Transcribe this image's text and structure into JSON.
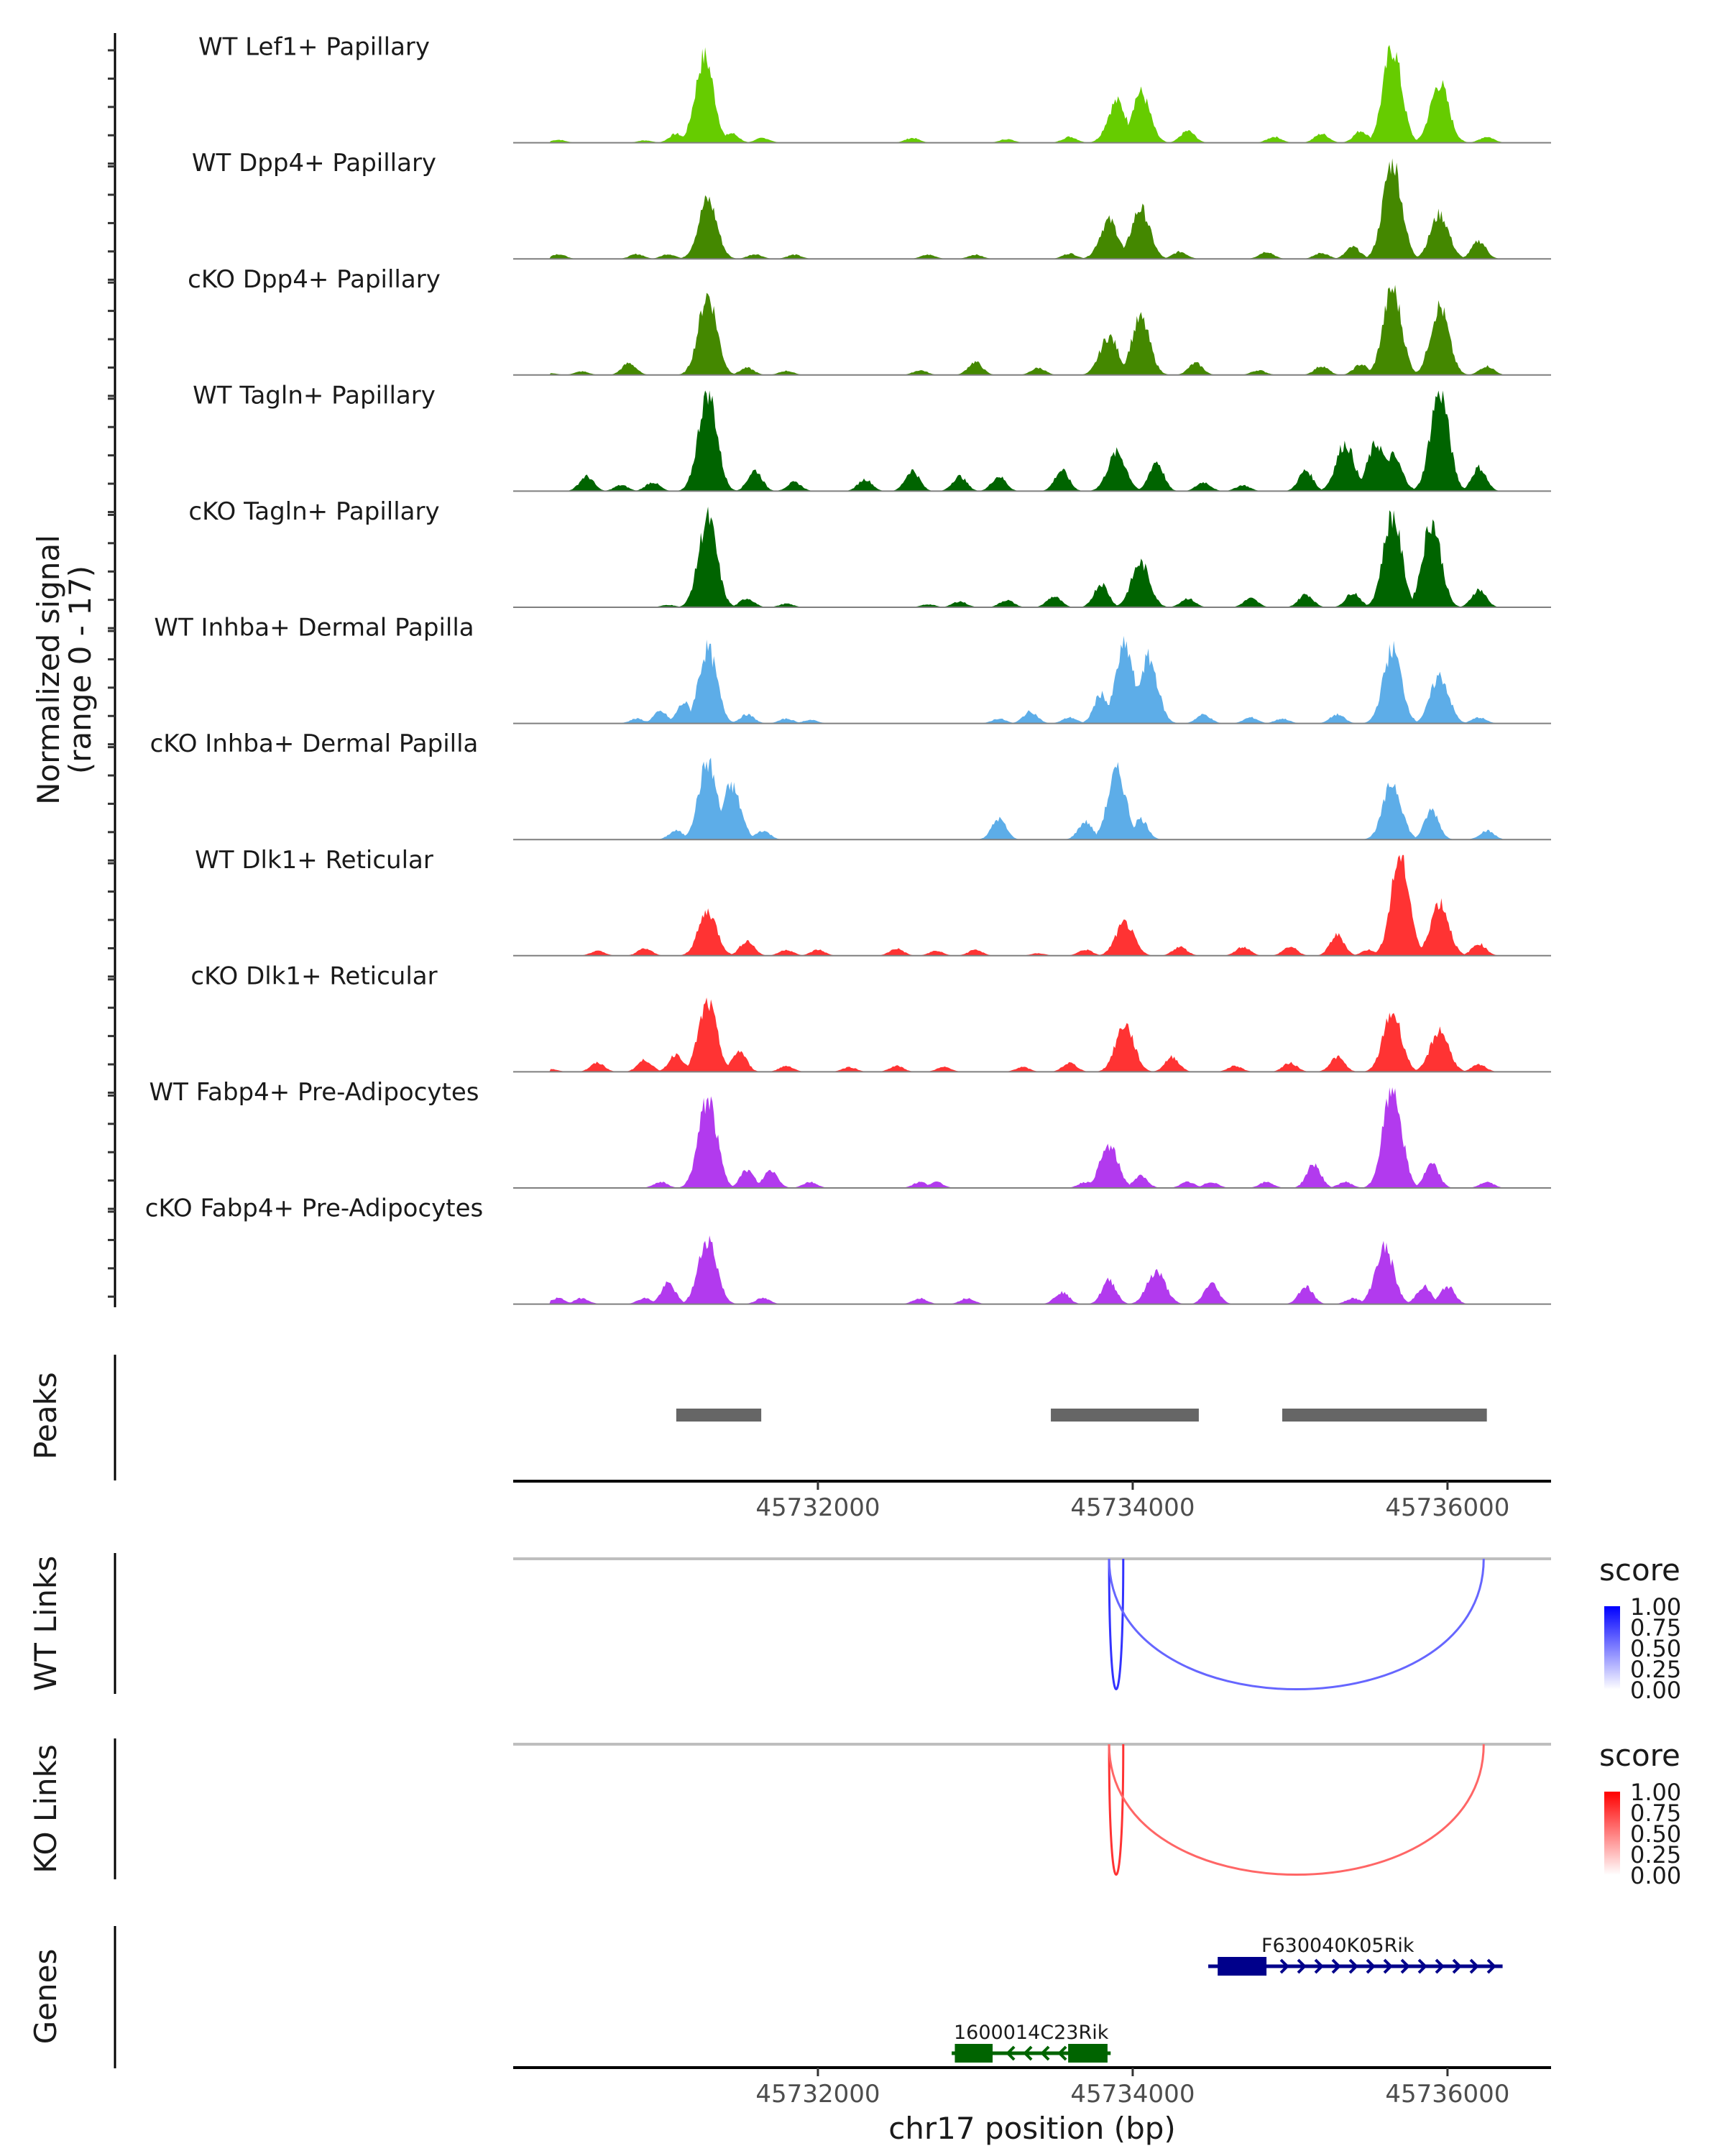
{
  "chart_data": {
    "type": "area",
    "title": "",
    "xlabel": "chr17 position (bp)",
    "xlim": [
      45730064,
      45736658
    ],
    "x_ticks": [
      45732000,
      45734000,
      45736000
    ],
    "x_tick_labels": [
      "45732000",
      "45734000",
      "45736000"
    ],
    "coverage": {
      "ylabel_line1": "Normalized signal",
      "ylabel_line2": "(range 0 - 17)",
      "ylim": [
        0,
        17
      ],
      "tracks": [
        {
          "name": "WT Lef1+ Papillary",
          "color": "#66cc00",
          "peaks": [
            [
              45730350,
              0.5
            ],
            [
              45730900,
              0.4
            ],
            [
              45731100,
              1.5
            ],
            [
              45731280,
              14.5
            ],
            [
              45731450,
              1.6
            ],
            [
              45731650,
              0.8
            ],
            [
              45732600,
              0.8
            ],
            [
              45733200,
              0.6
            ],
            [
              45733600,
              1.0
            ],
            [
              45733900,
              7.0
            ],
            [
              45734050,
              8.5
            ],
            [
              45734350,
              2.0
            ],
            [
              45734900,
              1.0
            ],
            [
              45735200,
              1.5
            ],
            [
              45735450,
              2.0
            ],
            [
              45735650,
              16.0
            ],
            [
              45735950,
              10.0
            ],
            [
              45736250,
              1.0
            ]
          ]
        },
        {
          "name": "WT Dpp4+ Papillary",
          "color": "#448800",
          "peaks": [
            [
              45730350,
              0.8
            ],
            [
              45730850,
              0.8
            ],
            [
              45731050,
              0.8
            ],
            [
              45731300,
              10.0
            ],
            [
              45731600,
              0.8
            ],
            [
              45731850,
              0.7
            ],
            [
              45732700,
              0.7
            ],
            [
              45733000,
              0.7
            ],
            [
              45733600,
              0.9
            ],
            [
              45733850,
              6.5
            ],
            [
              45734050,
              8.5
            ],
            [
              45734300,
              1.2
            ],
            [
              45734850,
              1.2
            ],
            [
              45735200,
              1.0
            ],
            [
              45735400,
              2.0
            ],
            [
              45735650,
              16.5
            ],
            [
              45735950,
              7.5
            ],
            [
              45736200,
              3.0
            ]
          ]
        },
        {
          "name": "cKO Dpp4+ Papillary",
          "color": "#448800",
          "peaks": [
            [
              45730300,
              0.3
            ],
            [
              45730500,
              0.6
            ],
            [
              45730800,
              2.0
            ],
            [
              45731300,
              13.5
            ],
            [
              45731550,
              1.2
            ],
            [
              45731800,
              0.7
            ],
            [
              45732650,
              0.8
            ],
            [
              45733000,
              2.2
            ],
            [
              45733400,
              1.2
            ],
            [
              45733850,
              6.5
            ],
            [
              45734050,
              9.5
            ],
            [
              45734400,
              2.0
            ],
            [
              45734800,
              0.8
            ],
            [
              45735200,
              1.5
            ],
            [
              45735450,
              1.8
            ],
            [
              45735650,
              14.5
            ],
            [
              45735950,
              11.5
            ],
            [
              45736250,
              1.5
            ]
          ]
        },
        {
          "name": "WT Tagln+ Papillary",
          "color": "#006400",
          "peaks": [
            [
              45730530,
              2.5
            ],
            [
              45730750,
              1.0
            ],
            [
              45730950,
              1.5
            ],
            [
              45731300,
              17.0
            ],
            [
              45731600,
              3.5
            ],
            [
              45731850,
              1.5
            ],
            [
              45732300,
              2.0
            ],
            [
              45732600,
              3.5
            ],
            [
              45732900,
              2.5
            ],
            [
              45733150,
              2.5
            ],
            [
              45733550,
              3.5
            ],
            [
              45733900,
              6.5
            ],
            [
              45734150,
              5.0
            ],
            [
              45734450,
              1.5
            ],
            [
              45734700,
              1.0
            ],
            [
              45735100,
              3.5
            ],
            [
              45735350,
              8.0
            ],
            [
              45735550,
              8.0
            ],
            [
              45735650,
              6.0
            ],
            [
              45735950,
              17.0
            ],
            [
              45736200,
              4.0
            ]
          ]
        },
        {
          "name": "cKO Tagln+ Papillary",
          "color": "#006400",
          "peaks": [
            [
              45731050,
              0.4
            ],
            [
              45731300,
              15.0
            ],
            [
              45731550,
              1.5
            ],
            [
              45731800,
              0.6
            ],
            [
              45732700,
              0.5
            ],
            [
              45732900,
              1.0
            ],
            [
              45733200,
              1.2
            ],
            [
              45733500,
              1.8
            ],
            [
              45733800,
              4.0
            ],
            [
              45734050,
              7.5
            ],
            [
              45734350,
              1.5
            ],
            [
              45734750,
              1.5
            ],
            [
              45735100,
              2.2
            ],
            [
              45735400,
              2.5
            ],
            [
              45735650,
              15.5
            ],
            [
              45735900,
              14.5
            ],
            [
              45736200,
              3.0
            ]
          ]
        },
        {
          "name": "WT Inhba+ Dermal Papilla",
          "color": "#5dade8",
          "peaks": [
            [
              45730850,
              0.8
            ],
            [
              45731000,
              2.0
            ],
            [
              45731150,
              3.5
            ],
            [
              45731300,
              12.5
            ],
            [
              45731550,
              1.5
            ],
            [
              45731800,
              0.8
            ],
            [
              45731950,
              0.6
            ],
            [
              45733150,
              0.8
            ],
            [
              45733350,
              2.0
            ],
            [
              45733600,
              1.0
            ],
            [
              45733800,
              5.0
            ],
            [
              45733950,
              13.0
            ],
            [
              45734100,
              11.0
            ],
            [
              45734450,
              1.5
            ],
            [
              45734750,
              1.0
            ],
            [
              45734950,
              0.8
            ],
            [
              45735300,
              1.5
            ],
            [
              45735650,
              12.5
            ],
            [
              45735950,
              8.0
            ],
            [
              45736200,
              1.0
            ]
          ]
        },
        {
          "name": "cKO Inhba+ Dermal Papilla",
          "color": "#5dade8",
          "peaks": [
            [
              45731100,
              1.5
            ],
            [
              45731300,
              13.0
            ],
            [
              45731450,
              9.0
            ],
            [
              45731650,
              1.5
            ],
            [
              45733150,
              3.5
            ],
            [
              45733700,
              3.0
            ],
            [
              45733900,
              11.5
            ],
            [
              45734050,
              3.5
            ],
            [
              45735650,
              9.5
            ],
            [
              45735900,
              5.0
            ],
            [
              45736250,
              1.5
            ]
          ]
        },
        {
          "name": "WT Dlk1+ Reticular",
          "color": "#ff3333",
          "peaks": [
            [
              45730600,
              0.8
            ],
            [
              45730900,
              1.2
            ],
            [
              45731300,
              7.5
            ],
            [
              45731550,
              2.5
            ],
            [
              45731800,
              1.0
            ],
            [
              45732000,
              1.0
            ],
            [
              45732500,
              1.2
            ],
            [
              45732750,
              0.8
            ],
            [
              45733000,
              1.0
            ],
            [
              45733400,
              0.4
            ],
            [
              45733700,
              1.0
            ],
            [
              45733950,
              5.5
            ],
            [
              45734300,
              1.5
            ],
            [
              45734700,
              1.5
            ],
            [
              45735000,
              1.5
            ],
            [
              45735300,
              3.5
            ],
            [
              45735500,
              1.0
            ],
            [
              45735700,
              17.0
            ],
            [
              45735950,
              9.0
            ],
            [
              45736200,
              2.0
            ]
          ]
        },
        {
          "name": "cKO Dlk1+ Reticular",
          "color": "#ff3333",
          "peaks": [
            [
              45730300,
              0.5
            ],
            [
              45730600,
              1.5
            ],
            [
              45730900,
              2.0
            ],
            [
              45731100,
              3.0
            ],
            [
              45731300,
              11.5
            ],
            [
              45731500,
              3.5
            ],
            [
              45731800,
              1.0
            ],
            [
              45732200,
              0.8
            ],
            [
              45732500,
              1.0
            ],
            [
              45732800,
              0.8
            ],
            [
              45733300,
              0.8
            ],
            [
              45733600,
              1.5
            ],
            [
              45733950,
              8.0
            ],
            [
              45734250,
              2.5
            ],
            [
              45734650,
              1.0
            ],
            [
              45735000,
              1.5
            ],
            [
              45735300,
              2.5
            ],
            [
              45735650,
              10.0
            ],
            [
              45735950,
              7.0
            ],
            [
              45736200,
              1.2
            ]
          ]
        },
        {
          "name": "WT Fabp4+ Pre-Adipocytes",
          "color": "#b23aee",
          "peaks": [
            [
              45731000,
              1.0
            ],
            [
              45731300,
              15.0
            ],
            [
              45731550,
              3.0
            ],
            [
              45731700,
              3.0
            ],
            [
              45731950,
              1.0
            ],
            [
              45732650,
              1.0
            ],
            [
              45732750,
              1.0
            ],
            [
              45733700,
              1.0
            ],
            [
              45733850,
              7.0
            ],
            [
              45734050,
              2.0
            ],
            [
              45734350,
              1.0
            ],
            [
              45734500,
              1.0
            ],
            [
              45734850,
              1.0
            ],
            [
              45735150,
              4.0
            ],
            [
              45735350,
              1.0
            ],
            [
              45735650,
              17.0
            ],
            [
              45735900,
              4.0
            ],
            [
              45736250,
              1.0
            ]
          ]
        },
        {
          "name": "cKO Fabp4+ Pre-Adipocytes",
          "color": "#b23aee",
          "peaks": [
            [
              45730350,
              1.0
            ],
            [
              45730500,
              1.0
            ],
            [
              45730900,
              1.0
            ],
            [
              45731050,
              3.5
            ],
            [
              45731300,
              11.0
            ],
            [
              45731650,
              1.0
            ],
            [
              45732650,
              1.0
            ],
            [
              45732950,
              1.0
            ],
            [
              45733550,
              2.0
            ],
            [
              45733850,
              4.0
            ],
            [
              45734150,
              5.5
            ],
            [
              45734500,
              3.5
            ],
            [
              45735100,
              3.0
            ],
            [
              45735400,
              1.0
            ],
            [
              45735600,
              9.5
            ],
            [
              45735850,
              3.0
            ],
            [
              45736000,
              3.0
            ]
          ]
        }
      ]
    },
    "peaks": {
      "label": "Peaks",
      "color": "#666666",
      "regions": [
        [
          45731100,
          45731640
        ],
        [
          45733480,
          45734420
        ],
        [
          45734950,
          45736250
        ]
      ]
    },
    "links": [
      {
        "label": "WT Links",
        "legend_title": "score",
        "low_color": "#ffffff",
        "high_color": "#0000ff",
        "legend_ticks": [
          "1.00",
          "0.75",
          "0.50",
          "0.25",
          "0.00"
        ],
        "arcs": [
          {
            "start": 45733850,
            "end": 45733940,
            "score": 0.55
          },
          {
            "start": 45733850,
            "end": 45736230,
            "score": 0.35
          }
        ]
      },
      {
        "label": "KO Links",
        "legend_title": "score",
        "low_color": "#ffffff",
        "high_color": "#ff0000",
        "legend_ticks": [
          "1.00",
          "0.75",
          "0.50",
          "0.25",
          "0.00"
        ],
        "arcs": [
          {
            "start": 45733850,
            "end": 45733940,
            "score": 0.55
          },
          {
            "start": 45733850,
            "end": 45736230,
            "score": 0.35
          }
        ]
      }
    ],
    "genes": {
      "label": "Genes",
      "items": [
        {
          "name": "F630040K05Rik",
          "strand": "+",
          "color": "#00008b",
          "row": 0,
          "start": 45734480,
          "end": 45736350,
          "exons": [
            [
              45734540,
              45734850
            ]
          ]
        },
        {
          "name": "1600014C23Rik",
          "strand": "-",
          "color": "#006400",
          "row": 1,
          "start": 45732850,
          "end": 45733860,
          "exons": [
            [
              45732870,
              45733110
            ],
            [
              45733590,
              45733840
            ]
          ]
        }
      ]
    }
  }
}
